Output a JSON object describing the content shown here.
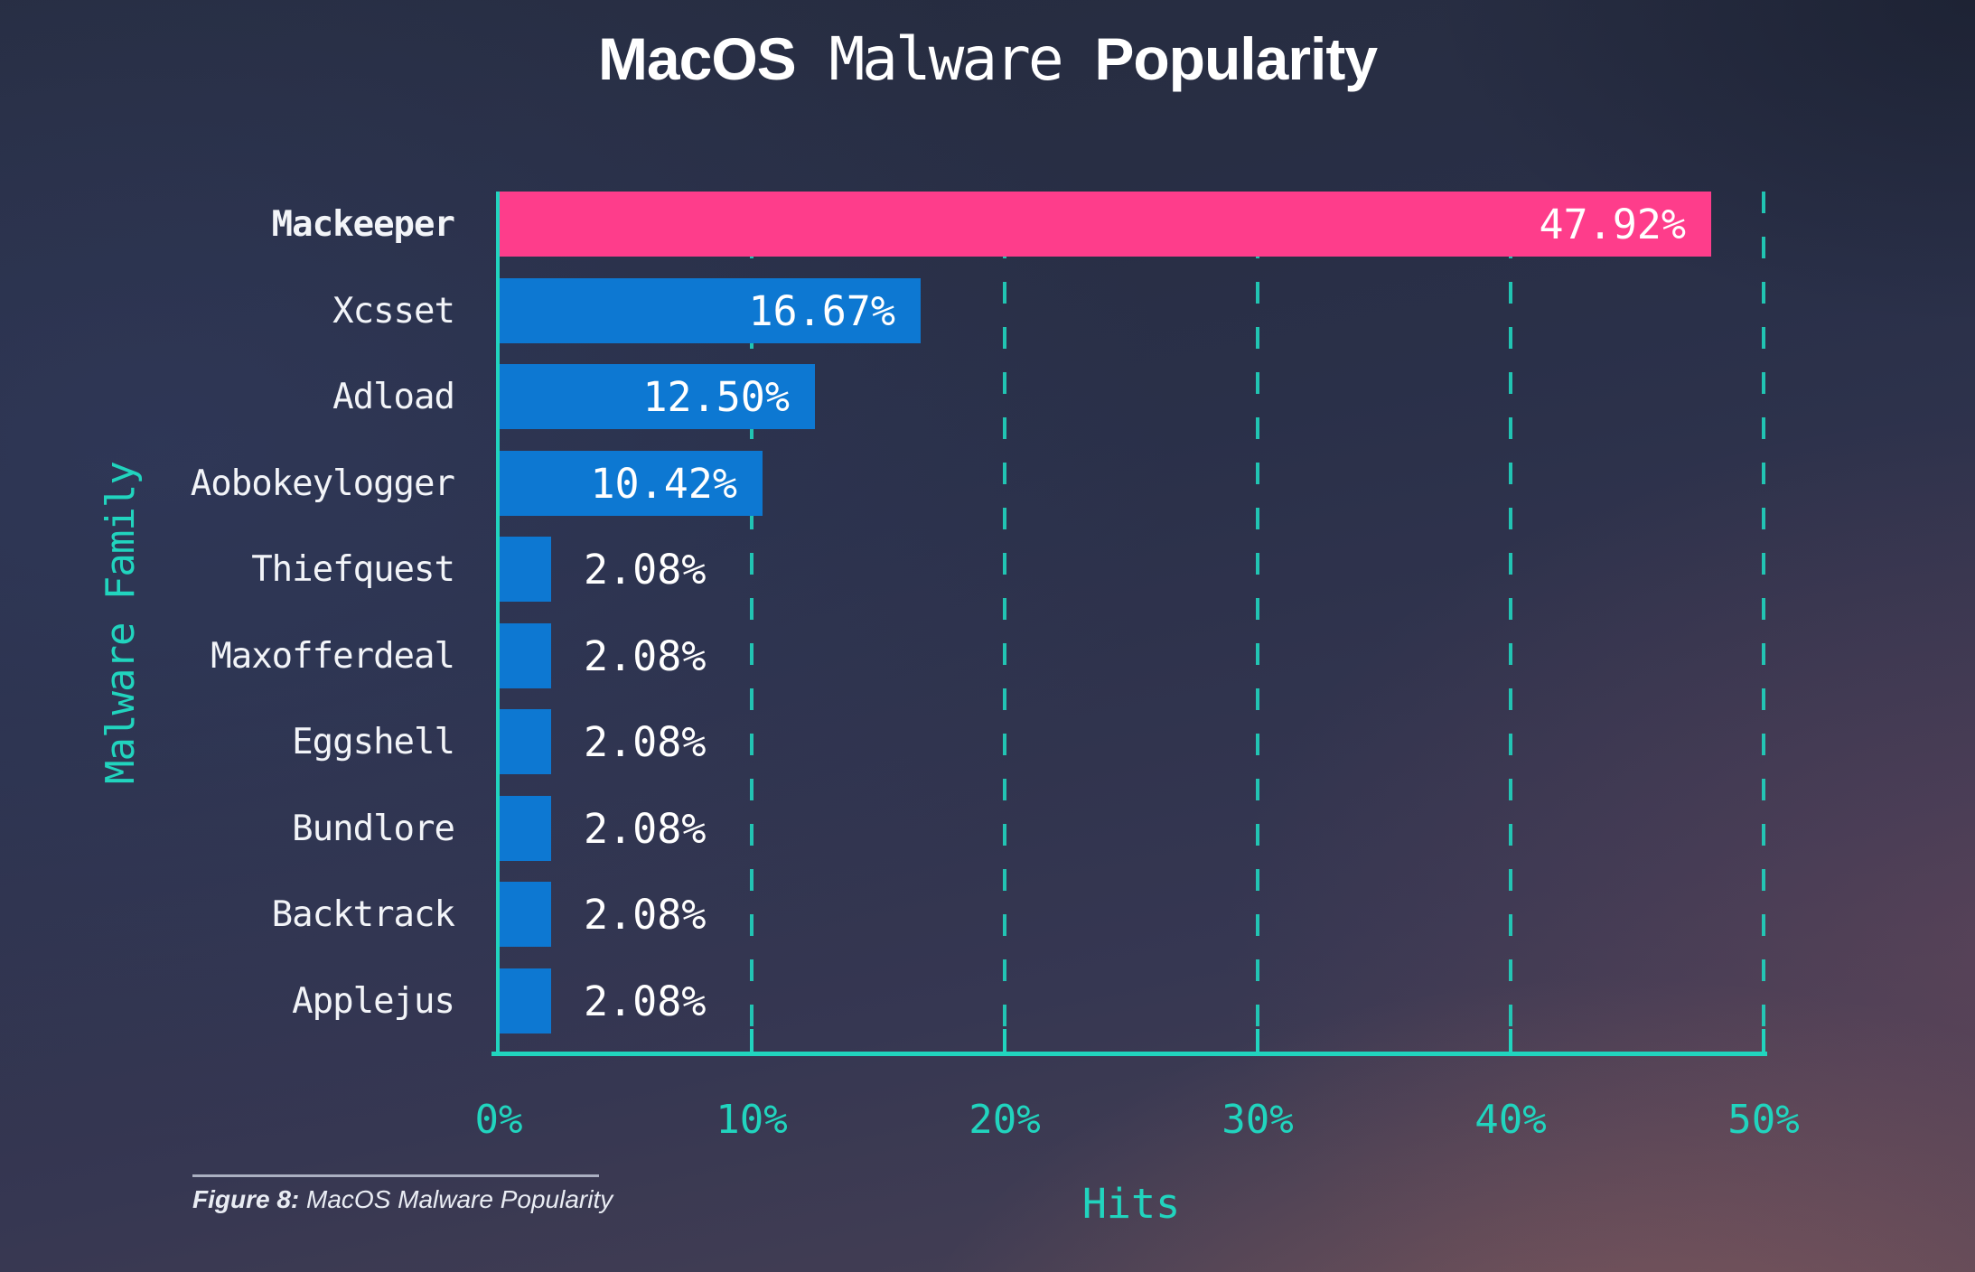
{
  "title": {
    "part1": "MacOS",
    "part2": "Malware",
    "part3": "Popularity"
  },
  "chart_data": {
    "type": "bar",
    "orientation": "horizontal",
    "title": "MacOS Malware Popularity",
    "xlabel": "Hits",
    "ylabel": "Malware Family",
    "categories": [
      "Mackeeper",
      "Xcsset",
      "Adload",
      "Aobokeylogger",
      "Thiefquest",
      "Maxofferdeal",
      "Eggshell",
      "Bundlore",
      "Backtrack",
      "Applejus"
    ],
    "values": [
      47.92,
      16.67,
      12.5,
      10.42,
      2.08,
      2.08,
      2.08,
      2.08,
      2.08,
      2.08
    ],
    "value_labels": [
      "47.92%",
      "16.67%",
      "12.50%",
      "10.42%",
      "2.08%",
      "2.08%",
      "2.08%",
      "2.08%",
      "2.08%",
      "2.08%"
    ],
    "xlim": [
      0,
      50
    ],
    "xticks": [
      0,
      10,
      20,
      30,
      40,
      50
    ],
    "xtick_labels": [
      "0%",
      "10%",
      "20%",
      "30%",
      "40%",
      "50%"
    ],
    "grid": "vertical-dashed-teal",
    "legend": "none",
    "highlight_index": 0,
    "colors": {
      "highlight_bar": "#fe3d8b",
      "bar": "#0d78d2",
      "axis": "#21d4be",
      "value_text": "#ffffff",
      "category_text": "#f2f4f8",
      "background": "#2b3250"
    }
  },
  "caption": {
    "prefix": "Figure 8:",
    "text": "MacOS Malware Popularity"
  }
}
